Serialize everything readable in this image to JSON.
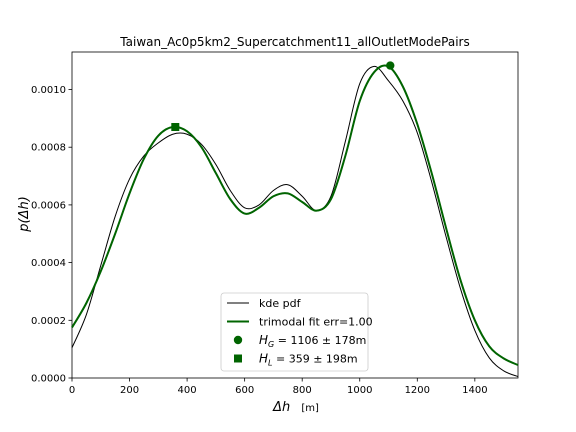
{
  "chart_data": {
    "type": "line",
    "title": "Taiwan_Ac0p5km2_Supercatchment11_allOutletModePairs",
    "xlabel": "Δh",
    "xlabel_unit": "[m]",
    "ylabel": "p(Δh)",
    "xlim": [
      0,
      1550
    ],
    "ylim": [
      0,
      0.00113
    ],
    "xticks": [
      0,
      200,
      400,
      600,
      800,
      1000,
      1200,
      1400
    ],
    "yticks": [
      0.0,
      0.0002,
      0.0004,
      0.0006,
      0.0008,
      0.001
    ],
    "ytick_labels": [
      "0.0000",
      "0.0002",
      "0.0004",
      "0.0006",
      "0.0008",
      "0.0010"
    ],
    "series": [
      {
        "name": "kde pdf",
        "color": "#000000",
        "x": [
          0,
          50,
          100,
          150,
          200,
          250,
          300,
          350,
          400,
          450,
          500,
          550,
          600,
          650,
          700,
          750,
          800,
          850,
          900,
          950,
          1000,
          1050,
          1100,
          1150,
          1200,
          1250,
          1300,
          1350,
          1400,
          1450,
          1500,
          1550
        ],
        "y": [
          0.000105,
          0.00022,
          0.00039,
          0.00056,
          0.00069,
          0.00077,
          0.000815,
          0.000845,
          0.000845,
          0.00081,
          0.00074,
          0.00065,
          0.00059,
          0.0006,
          0.00065,
          0.00067,
          0.00063,
          0.00058,
          0.00063,
          0.00082,
          0.00102,
          0.00108,
          0.00103,
          0.00096,
          0.00085,
          0.00068,
          0.00049,
          0.00031,
          0.000165,
          7e-05,
          2.5e-05,
          5e-06
        ]
      },
      {
        "name": "trimodal fit err=1.00",
        "color": "#006400",
        "x": [
          0,
          50,
          100,
          150,
          200,
          250,
          300,
          350,
          400,
          450,
          500,
          550,
          600,
          650,
          700,
          750,
          800,
          850,
          900,
          950,
          1000,
          1050,
          1100,
          1150,
          1200,
          1250,
          1300,
          1350,
          1400,
          1450,
          1500,
          1550
        ],
        "y": [
          0.000175,
          0.00026,
          0.00037,
          0.0005,
          0.00064,
          0.00076,
          0.00084,
          0.00087,
          0.000855,
          0.0008,
          0.00071,
          0.00062,
          0.00057,
          0.00059,
          0.00063,
          0.00064,
          0.00061,
          0.00058,
          0.00062,
          0.00077,
          0.00096,
          0.00106,
          0.00108,
          0.00101,
          0.00088,
          0.00071,
          0.00052,
          0.00034,
          0.0002,
          0.00011,
          6.8e-05,
          4.5e-05
        ]
      }
    ],
    "markers": [
      {
        "name": "H_G = 1106 ± 178m",
        "shape": "circle",
        "color": "#006400",
        "x": 1106,
        "y": 0.001083
      },
      {
        "name": "H_L = 359 ± 198m",
        "shape": "square",
        "color": "#006400",
        "x": 359,
        "y": 0.00087
      }
    ],
    "legend": {
      "placement": "lower-center",
      "entries": [
        {
          "kind": "line",
          "color": "#000000",
          "label": "kde pdf"
        },
        {
          "kind": "line",
          "color": "#006400",
          "label": "trimodal fit err=1.00"
        },
        {
          "kind": "circle",
          "color": "#006400",
          "sym": "H",
          "sub": "G",
          "label": " = 1106 ± 178m"
        },
        {
          "kind": "square",
          "color": "#006400",
          "sym": "H",
          "sub": "L",
          "label": " = 359 ± 198m"
        }
      ]
    },
    "grid": false
  }
}
